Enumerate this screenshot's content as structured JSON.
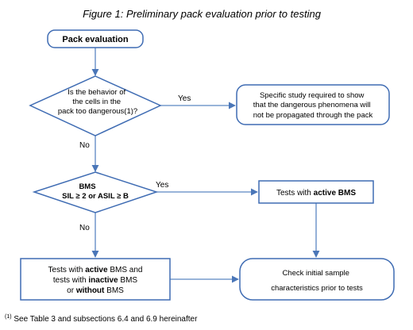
{
  "figure": {
    "title": "Figure 1: Preliminary pack evaluation prior to testing"
  },
  "nodes": {
    "start": {
      "label": "Pack evaluation"
    },
    "decision1": {
      "lines": [
        "Is the behavior of",
        "the cells in the",
        "pack too dangerous(1)?"
      ]
    },
    "study": {
      "lines": [
        "Specific study required to show",
        "that the dangerous phenomena will",
        "not be propagated through the pack"
      ]
    },
    "decision2": {
      "line1": "BMS",
      "line2": "SIL ≥ 2 or ASIL ≥ B"
    },
    "active_tests": {
      "prefix": "Tests with ",
      "bold": "active BMS"
    },
    "mixed_tests": {
      "line1_prefix": "Tests with ",
      "line1_bold": "active",
      "line1_suffix": " BMS and",
      "line2_prefix": "tests with ",
      "line2_bold": "inactive",
      "line2_suffix": " BMS",
      "line3_prefix": "or ",
      "line3_bold": "without",
      "line3_suffix": " BMS"
    },
    "check": {
      "lines": [
        "Check initial sample",
        "characteristics prior to tests"
      ]
    }
  },
  "edges": {
    "d1_yes": "Yes",
    "d1_no": "No",
    "d2_yes": "Yes",
    "d2_no": "No"
  },
  "footnote": {
    "marker": "(1)",
    "text": " See Table 3 and subsections 6.4 and 6.9 hereinafter"
  },
  "colors": {
    "shape_stroke": "#3f6cb3",
    "connector": "#5b86c2",
    "text": "#000000"
  }
}
